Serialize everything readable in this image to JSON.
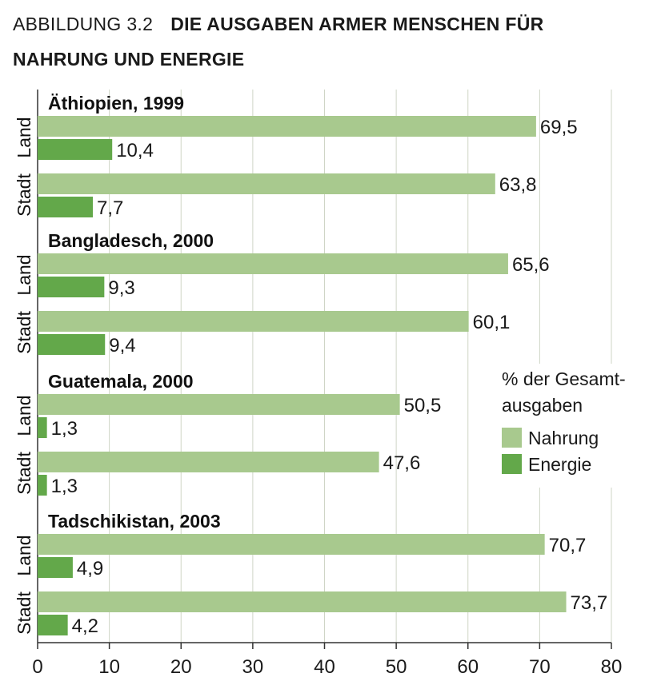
{
  "figure": {
    "label": "ABBILDUNG 3.2",
    "title_line1": "DIE AUSGABEN ARMER MENSCHEN FÜR",
    "title_line2": "NAHRUNG UND ENERGIE"
  },
  "chart_data": {
    "type": "bar",
    "orientation": "horizontal",
    "xlim": [
      0,
      80
    ],
    "xticks": [
      "0",
      "10",
      "20",
      "30",
      "40",
      "50",
      "60",
      "70",
      "80"
    ],
    "grid": true,
    "legend": {
      "title_line1": "% der Gesamt-",
      "title_line2": "ausgaben",
      "placement": "right",
      "items": [
        {
          "name": "Nahrung",
          "color": "#a8c98e"
        },
        {
          "name": "Energie",
          "color": "#63a84a"
        }
      ]
    },
    "series": [
      {
        "name": "Nahrung",
        "color": "#a8c98e"
      },
      {
        "name": "Energie",
        "color": "#63a84a"
      }
    ],
    "groups": [
      {
        "title": "Äthiopien, 1999",
        "rows": [
          {
            "label": "Land",
            "values": [
              69.5,
              10.4
            ],
            "value_labels": [
              "69,5",
              "10,4"
            ]
          },
          {
            "label": "Stadt",
            "values": [
              63.8,
              7.7
            ],
            "value_labels": [
              "63,8",
              "7,7"
            ]
          }
        ]
      },
      {
        "title": "Bangladesch, 2000",
        "rows": [
          {
            "label": "Land",
            "values": [
              65.6,
              9.3
            ],
            "value_labels": [
              "65,6",
              "9,3"
            ]
          },
          {
            "label": "Stadt",
            "values": [
              60.1,
              9.4
            ],
            "value_labels": [
              "60,1",
              "9,4"
            ]
          }
        ]
      },
      {
        "title": "Guatemala, 2000",
        "rows": [
          {
            "label": "Land",
            "values": [
              50.5,
              1.3
            ],
            "value_labels": [
              "50,5",
              "1,3"
            ]
          },
          {
            "label": "Stadt",
            "values": [
              47.6,
              1.3
            ],
            "value_labels": [
              "47,6",
              "1,3"
            ]
          }
        ]
      },
      {
        "title": "Tadschikistan, 2003",
        "rows": [
          {
            "label": "Land",
            "values": [
              70.7,
              4.9
            ],
            "value_labels": [
              "70,7",
              "4,9"
            ]
          },
          {
            "label": "Stadt",
            "values": [
              73.7,
              4.2
            ],
            "value_labels": [
              "73,7",
              "4,2"
            ]
          }
        ]
      }
    ]
  }
}
